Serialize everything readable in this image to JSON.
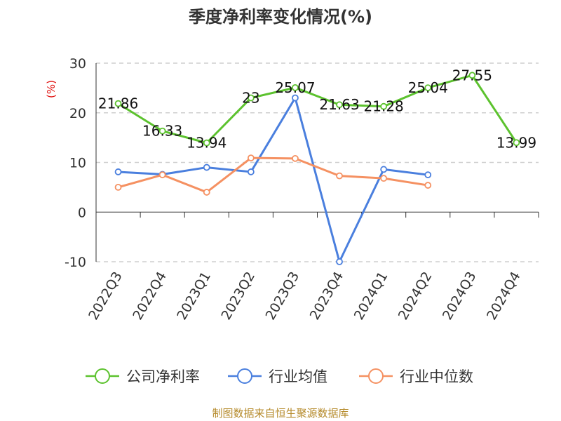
{
  "chart_data": {
    "type": "line",
    "title": "季度净利率变化情况(%)",
    "ylabel": "(%)",
    "xlabel": "",
    "categories": [
      "2022Q3",
      "2022Q4",
      "2023Q1",
      "2023Q2",
      "2023Q3",
      "2023Q4",
      "2024Q1",
      "2024Q2",
      "2024Q3",
      "2024Q4"
    ],
    "ylim": [
      -10,
      30
    ],
    "yticks": [
      "30",
      "20",
      "10",
      "0",
      "-10"
    ],
    "grid": true,
    "legend_position": "bottom",
    "series": [
      {
        "name": "公司净利率",
        "color": "#5cc22e",
        "values": [
          21.86,
          16.33,
          13.94,
          23,
          25.07,
          21.63,
          21.28,
          25.04,
          27.55,
          13.99
        ],
        "labels": [
          "21.86",
          "16.33",
          "13.94",
          "23",
          "25.07",
          "21.63",
          "21.28",
          "25.04",
          "27.55",
          "13.99"
        ]
      },
      {
        "name": "行业均值",
        "color": "#4a7fde",
        "values": [
          8.1,
          7.6,
          9.0,
          8.1,
          23.0,
          -10.0,
          8.6,
          7.5,
          null,
          null
        ]
      },
      {
        "name": "行业中位数",
        "color": "#f59162",
        "values": [
          5.0,
          7.5,
          4.0,
          10.9,
          10.8,
          7.3,
          6.8,
          5.4,
          null,
          null
        ]
      }
    ]
  },
  "source": "制图数据来自恒生聚源数据库"
}
